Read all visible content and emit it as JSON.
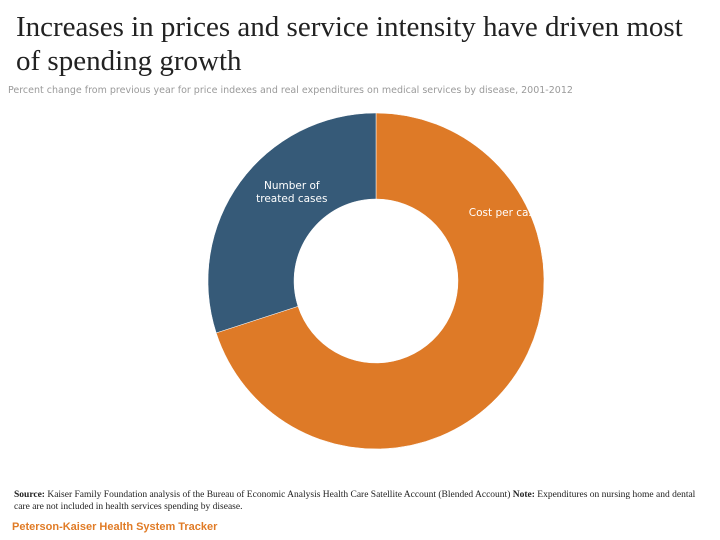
{
  "chart_data": {
    "type": "pie",
    "title": "Increases in prices and service intensity have driven most of spending growth",
    "subtitle": "Percent change from previous year for price indexes and real expenditures on medical services by disease, 2001-2012",
    "slices": [
      {
        "label_lines": [
          "Cost per case"
        ],
        "value": 70,
        "color": "#de7a27"
      },
      {
        "label_lines": [
          "Number of",
          "treated cases"
        ],
        "value": 30,
        "color": "#365a78"
      }
    ]
  },
  "source": {
    "source_label": "Source:",
    "source_text": "Kaiser Family Foundation analysis of the Bureau of Economic Analysis Health Care Satellite Account (Blended Account)",
    "note_label": "Note:",
    "note_text": "Expenditures on nursing home and dental care are not included in health services spending by disease."
  },
  "footer": "Peterson-Kaiser Health System Tracker"
}
